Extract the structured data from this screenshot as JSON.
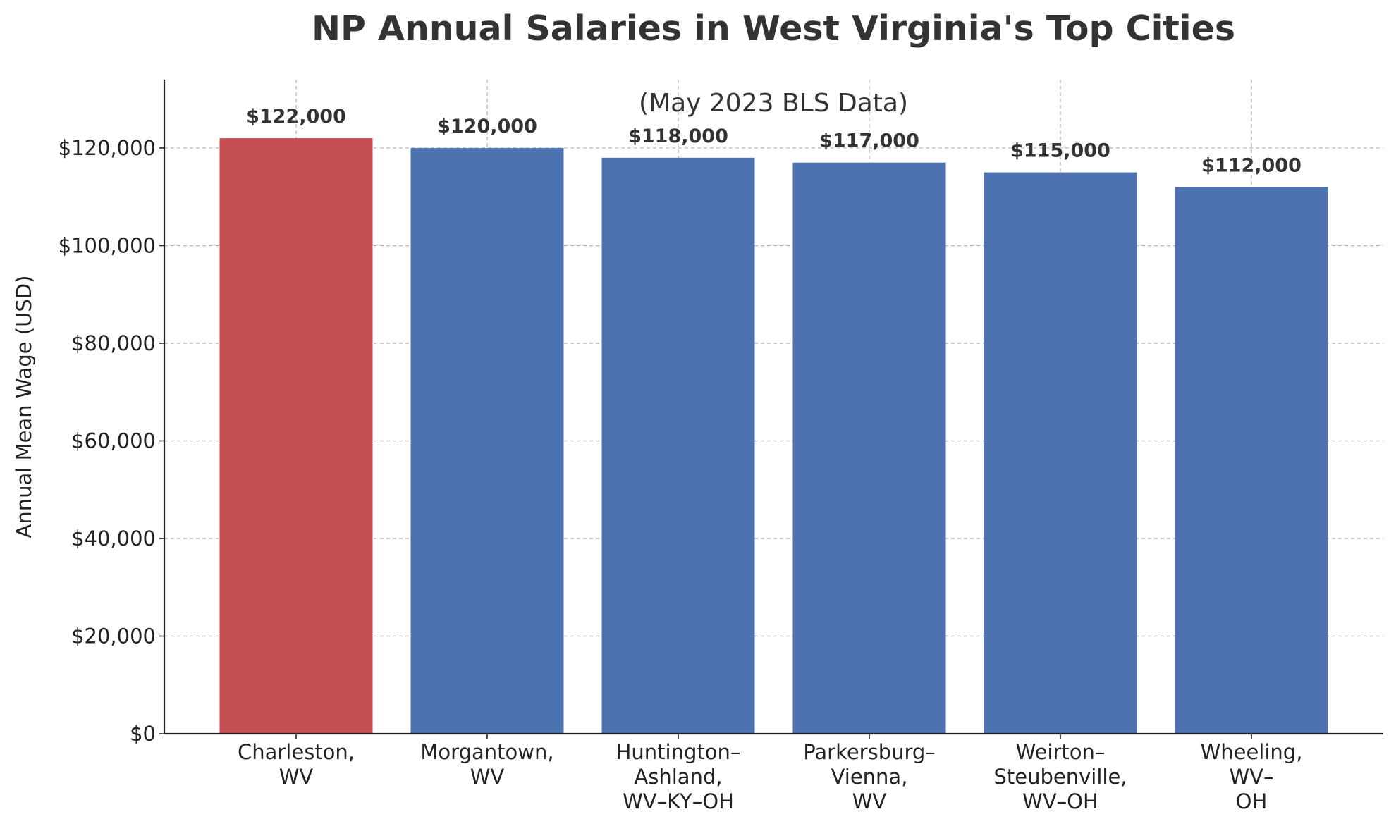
{
  "chart_data": {
    "type": "bar",
    "title": "NP Annual Salaries in West Virginia's Top Cities",
    "subtitle": "(May 2023 BLS Data)",
    "xlabel": "",
    "ylabel": "Annual Mean Wage (USD)",
    "ylim": [
      0,
      134000
    ],
    "yticks": [
      0,
      20000,
      40000,
      60000,
      80000,
      100000,
      120000
    ],
    "ytick_labels": [
      "$0",
      "$20,000",
      "$40,000",
      "$60,000",
      "$80,000",
      "$100,000",
      "$120,000"
    ],
    "grid": true,
    "categories": [
      [
        "Charleston,",
        "WV"
      ],
      [
        "Morgantown,",
        "WV"
      ],
      [
        "Huntington–",
        "Ashland,",
        "WV–KY–OH"
      ],
      [
        "Parkersburg–",
        "Vienna,",
        "WV"
      ],
      [
        "Weirton–",
        "Steubenville,",
        "WV–OH"
      ],
      [
        "Wheeling,",
        "WV–",
        "OH"
      ]
    ],
    "values": [
      122000,
      120000,
      118000,
      117000,
      115000,
      112000
    ],
    "value_labels": [
      "$122,000",
      "$120,000",
      "$118,000",
      "$117,000",
      "$115,000",
      "$112,000"
    ],
    "colors": [
      "#c44e52",
      "#4c72b0",
      "#4c72b0",
      "#4c72b0",
      "#4c72b0",
      "#4c72b0"
    ]
  }
}
